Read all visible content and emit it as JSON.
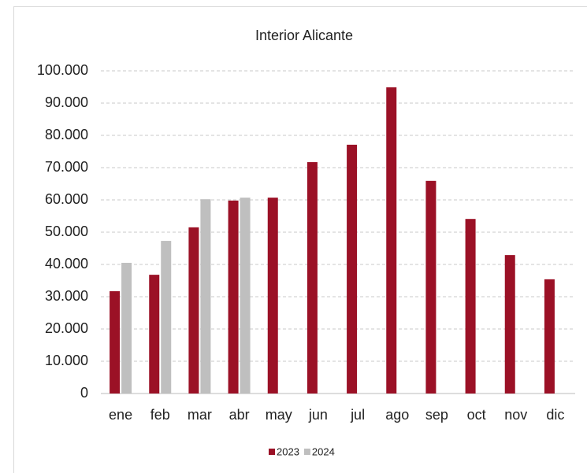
{
  "chart_data": {
    "type": "bar",
    "title": "Interior Alicante",
    "categories": [
      "ene",
      "feb",
      "mar",
      "abr",
      "may",
      "jun",
      "jul",
      "ago",
      "sep",
      "oct",
      "nov",
      "dic"
    ],
    "series": [
      {
        "name": "2023",
        "color": "#9b1126",
        "values": [
          31700,
          36800,
          51500,
          59800,
          60700,
          71700,
          77100,
          94900,
          65900,
          54100,
          42900,
          35400
        ]
      },
      {
        "name": "2024",
        "color": "#bfbfbf",
        "values": [
          40500,
          47300,
          60200,
          60700,
          null,
          null,
          null,
          null,
          null,
          null,
          null,
          null
        ]
      }
    ],
    "ylim": [
      0,
      100000
    ],
    "yticks": [
      0,
      {
        "value": 10000,
        "label": "10.000"
      },
      {
        "value": 20000,
        "label": "20.000"
      },
      {
        "value": 30000,
        "label": "30.000"
      },
      {
        "value": 40000,
        "label": "40.000"
      },
      {
        "value": 50000,
        "label": "50.000"
      },
      {
        "value": 60000,
        "label": "60.000"
      },
      {
        "value": 70000,
        "label": "70.000"
      },
      {
        "value": 80000,
        "label": "80.000"
      },
      {
        "value": 90000,
        "label": "90.000"
      },
      {
        "value": 100000,
        "label": "100.000"
      }
    ],
    "grid": true,
    "legend": "bottom"
  }
}
